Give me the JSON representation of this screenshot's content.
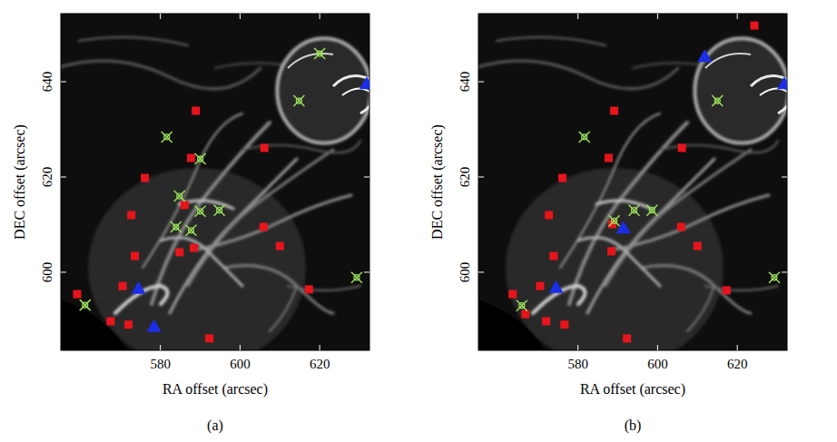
{
  "chart_data": [
    {
      "type": "scatter",
      "title": "(a)",
      "x_label": "RA offset (arcsec)",
      "y_label": "DEC offset (arcsec)",
      "xlim": [
        555,
        632.5
      ],
      "ylim": [
        583.6,
        654.3
      ],
      "xticks": [
        580,
        600,
        620
      ],
      "yticks": [
        600,
        620,
        640
      ],
      "tick_labels": true,
      "series": [
        {
          "color": "#e8141c",
          "marker": "square",
          "x": [
            588.9,
            606.1,
            587.7,
            576.1,
            572.7,
            586.1,
            605.9,
            610.0,
            588.4,
            584.8,
            573.6,
            570.5,
            559.1,
            617.3,
            567.5,
            572.0,
            592.3
          ],
          "values": [
            633.9,
            626.1,
            624.0,
            619.8,
            612.0,
            614.1,
            609.5,
            605.5,
            605.1,
            604.2,
            603.4,
            597.1,
            595.4,
            596.4,
            589.7,
            589.0,
            586.1
          ]
        },
        {
          "color": "#9be05a",
          "marker": "x",
          "x": [
            620.0,
            614.8,
            581.6,
            590.0,
            584.8,
            590.0,
            594.8,
            583.9,
            587.7,
            629.3,
            561.1
          ],
          "values": [
            645.9,
            636.0,
            628.4,
            623.8,
            616.0,
            612.8,
            613.0,
            609.5,
            608.8,
            598.9,
            593.1
          ]
        },
        {
          "color": "#1a2ee8",
          "marker": "triangle",
          "x": [
            631.8,
            574.5,
            578.4
          ],
          "values": [
            639.6,
            596.6,
            588.6
          ]
        }
      ]
    },
    {
      "type": "scatter",
      "title": "(b)",
      "x_label": "RA offset (arcsec)",
      "y_label": "DEC offset (arcsec)",
      "xlim": [
        555,
        632.5
      ],
      "ylim": [
        583.6,
        654.3
      ],
      "xticks": [
        580,
        600,
        620
      ],
      "yticks": [
        600,
        620,
        640
      ],
      "tick_labels": true,
      "series": [
        {
          "color": "#e8141c",
          "marker": "square",
          "x": [
            624.3,
            589.1,
            606.1,
            587.7,
            576.1,
            572.7,
            588.6,
            605.9,
            610.0,
            588.4,
            573.9,
            570.5,
            563.6,
            566.8,
            617.3,
            572.0,
            576.6,
            592.3
          ],
          "values": [
            651.8,
            633.9,
            626.1,
            624.0,
            619.8,
            612.0,
            610.1,
            609.5,
            605.5,
            604.4,
            603.4,
            597.1,
            595.4,
            591.2,
            596.2,
            589.7,
            589.0,
            586.1
          ]
        },
        {
          "color": "#9be05a",
          "marker": "x",
          "x": [
            615.0,
            581.6,
            589.1,
            594.1,
            598.6,
            629.3,
            565.9
          ],
          "values": [
            636.0,
            628.4,
            610.8,
            613.0,
            613.0,
            598.9,
            593.0
          ]
        },
        {
          "color": "#1a2ee8",
          "marker": "triangle",
          "x": [
            611.8,
            631.8,
            591.4,
            574.5
          ],
          "values": [
            645.3,
            639.6,
            609.3,
            596.8
          ]
        }
      ]
    }
  ]
}
